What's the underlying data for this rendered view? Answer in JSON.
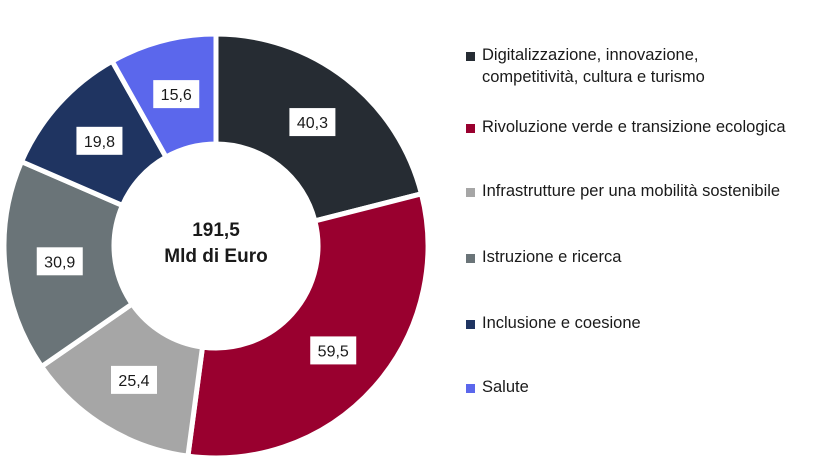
{
  "chart_data": {
    "type": "pie",
    "variant": "donut",
    "center_label": {
      "line1": "191,5",
      "line2": "Mld di Euro"
    },
    "legend_position": "right",
    "slices": [
      {
        "label": "Digitalizzazione, innovazione,\ncompetitività, cultura e turismo",
        "value": 40.3,
        "display": "40,3",
        "color": "#262c33"
      },
      {
        "label": "Rivoluzione verde e transizione ecologica",
        "value": 59.5,
        "display": "59,5",
        "color": "#99002f"
      },
      {
        "label": "Infrastrutture per una mobilità sostenibile",
        "value": 25.4,
        "display": "25,4",
        "color": "#a6a6a6"
      },
      {
        "label": "Istruzione e ricerca",
        "value": 30.9,
        "display": "30,9",
        "color": "#6a7478"
      },
      {
        "label": "Inclusione e coesione",
        "value": 19.8,
        "display": "19,8",
        "color": "#1f3461"
      },
      {
        "label": "Salute",
        "value": 15.6,
        "display": "15,6",
        "color": "#5b67ec"
      }
    ]
  }
}
